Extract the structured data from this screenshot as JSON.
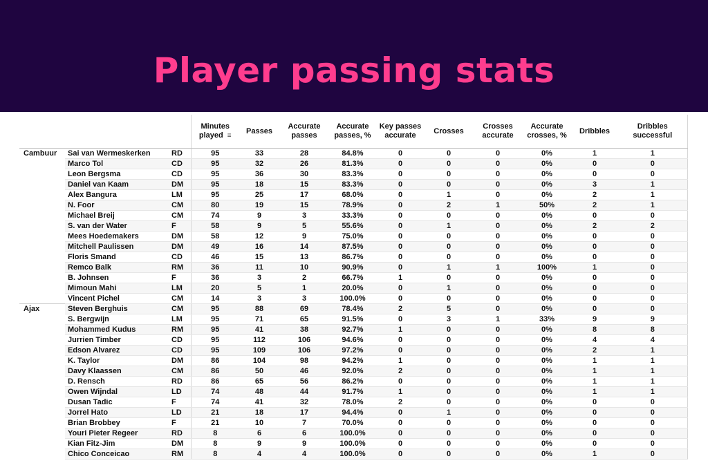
{
  "title": "Player passing stats",
  "columns": {
    "minutes": "Minutes played",
    "passes": "Passes",
    "accurate_passes": "Accurate passes",
    "accurate_passes_pct": "Accurate passes, %",
    "key_passes": "Key passes accurate",
    "crosses": "Crosses",
    "crosses_accurate": "Crosses accurate",
    "accurate_crosses_pct": "Accurate crosses, %",
    "dribbles": "Dribbles",
    "dribbles_successful": "Dribbles successful"
  },
  "rows": [
    {
      "team": "Cambuur",
      "player": "Sai van Wermeskerken",
      "pos": "RD",
      "minutes": "95",
      "passes": "33",
      "acc": "28",
      "acc_pct": "84.8%",
      "key": "0",
      "crosses": "0",
      "cross_acc": "0",
      "cross_pct": "0%",
      "dribbles": "1",
      "drib_succ": "1"
    },
    {
      "team": "",
      "player": "Marco Tol",
      "pos": "CD",
      "minutes": "95",
      "passes": "32",
      "acc": "26",
      "acc_pct": "81.3%",
      "key": "0",
      "crosses": "0",
      "cross_acc": "0",
      "cross_pct": "0%",
      "dribbles": "0",
      "drib_succ": "0"
    },
    {
      "team": "",
      "player": "Leon Bergsma",
      "pos": "CD",
      "minutes": "95",
      "passes": "36",
      "acc": "30",
      "acc_pct": "83.3%",
      "key": "0",
      "crosses": "0",
      "cross_acc": "0",
      "cross_pct": "0%",
      "dribbles": "0",
      "drib_succ": "0"
    },
    {
      "team": "",
      "player": "Daniel van Kaam",
      "pos": "DM",
      "minutes": "95",
      "passes": "18",
      "acc": "15",
      "acc_pct": "83.3%",
      "key": "0",
      "crosses": "0",
      "cross_acc": "0",
      "cross_pct": "0%",
      "dribbles": "3",
      "drib_succ": "1"
    },
    {
      "team": "",
      "player": "Alex Bangura",
      "pos": "LM",
      "minutes": "95",
      "passes": "25",
      "acc": "17",
      "acc_pct": "68.0%",
      "key": "0",
      "crosses": "1",
      "cross_acc": "0",
      "cross_pct": "0%",
      "dribbles": "2",
      "drib_succ": "1"
    },
    {
      "team": "",
      "player": "N. Foor",
      "pos": "CM",
      "minutes": "80",
      "passes": "19",
      "acc": "15",
      "acc_pct": "78.9%",
      "key": "0",
      "crosses": "2",
      "cross_acc": "1",
      "cross_pct": "50%",
      "dribbles": "2",
      "drib_succ": "1"
    },
    {
      "team": "",
      "player": "Michael Breij",
      "pos": "CM",
      "minutes": "74",
      "passes": "9",
      "acc": "3",
      "acc_pct": "33.3%",
      "key": "0",
      "crosses": "0",
      "cross_acc": "0",
      "cross_pct": "0%",
      "dribbles": "0",
      "drib_succ": "0"
    },
    {
      "team": "",
      "player": "S. van der Water",
      "pos": "F",
      "minutes": "58",
      "passes": "9",
      "acc": "5",
      "acc_pct": "55.6%",
      "key": "0",
      "crosses": "1",
      "cross_acc": "0",
      "cross_pct": "0%",
      "dribbles": "2",
      "drib_succ": "2"
    },
    {
      "team": "",
      "player": "Mees Hoedemakers",
      "pos": "DM",
      "minutes": "58",
      "passes": "12",
      "acc": "9",
      "acc_pct": "75.0%",
      "key": "0",
      "crosses": "0",
      "cross_acc": "0",
      "cross_pct": "0%",
      "dribbles": "0",
      "drib_succ": "0"
    },
    {
      "team": "",
      "player": "Mitchell Paulissen",
      "pos": "DM",
      "minutes": "49",
      "passes": "16",
      "acc": "14",
      "acc_pct": "87.5%",
      "key": "0",
      "crosses": "0",
      "cross_acc": "0",
      "cross_pct": "0%",
      "dribbles": "0",
      "drib_succ": "0"
    },
    {
      "team": "",
      "player": "Floris Smand",
      "pos": "CD",
      "minutes": "46",
      "passes": "15",
      "acc": "13",
      "acc_pct": "86.7%",
      "key": "0",
      "crosses": "0",
      "cross_acc": "0",
      "cross_pct": "0%",
      "dribbles": "0",
      "drib_succ": "0"
    },
    {
      "team": "",
      "player": "Remco Balk",
      "pos": "RM",
      "minutes": "36",
      "passes": "11",
      "acc": "10",
      "acc_pct": "90.9%",
      "key": "0",
      "crosses": "1",
      "cross_acc": "1",
      "cross_pct": "100%",
      "dribbles": "1",
      "drib_succ": "0"
    },
    {
      "team": "",
      "player": "B. Johnsen",
      "pos": "F",
      "minutes": "36",
      "passes": "3",
      "acc": "2",
      "acc_pct": "66.7%",
      "key": "1",
      "crosses": "0",
      "cross_acc": "0",
      "cross_pct": "0%",
      "dribbles": "0",
      "drib_succ": "0"
    },
    {
      "team": "",
      "player": "Mimoun Mahi",
      "pos": "LM",
      "minutes": "20",
      "passes": "5",
      "acc": "1",
      "acc_pct": "20.0%",
      "key": "0",
      "crosses": "1",
      "cross_acc": "0",
      "cross_pct": "0%",
      "dribbles": "0",
      "drib_succ": "0"
    },
    {
      "team": "",
      "player": "Vincent Pichel",
      "pos": "CM",
      "minutes": "14",
      "passes": "3",
      "acc": "3",
      "acc_pct": "100.0%",
      "key": "0",
      "crosses": "0",
      "cross_acc": "0",
      "cross_pct": "0%",
      "dribbles": "0",
      "drib_succ": "0"
    },
    {
      "team": "Ajax",
      "player": "Steven Berghuis",
      "pos": "CM",
      "minutes": "95",
      "passes": "88",
      "acc": "69",
      "acc_pct": "78.4%",
      "key": "2",
      "crosses": "5",
      "cross_acc": "0",
      "cross_pct": "0%",
      "dribbles": "0",
      "drib_succ": "0"
    },
    {
      "team": "",
      "player": "S. Bergwijn",
      "pos": "LM",
      "minutes": "95",
      "passes": "71",
      "acc": "65",
      "acc_pct": "91.5%",
      "key": "0",
      "crosses": "3",
      "cross_acc": "1",
      "cross_pct": "33%",
      "dribbles": "9",
      "drib_succ": "9"
    },
    {
      "team": "",
      "player": "Mohammed Kudus",
      "pos": "RM",
      "minutes": "95",
      "passes": "41",
      "acc": "38",
      "acc_pct": "92.7%",
      "key": "1",
      "crosses": "0",
      "cross_acc": "0",
      "cross_pct": "0%",
      "dribbles": "8",
      "drib_succ": "8"
    },
    {
      "team": "",
      "player": "Jurrien Timber",
      "pos": "CD",
      "minutes": "95",
      "passes": "112",
      "acc": "106",
      "acc_pct": "94.6%",
      "key": "0",
      "crosses": "0",
      "cross_acc": "0",
      "cross_pct": "0%",
      "dribbles": "4",
      "drib_succ": "4"
    },
    {
      "team": "",
      "player": "Edson Alvarez",
      "pos": "CD",
      "minutes": "95",
      "passes": "109",
      "acc": "106",
      "acc_pct": "97.2%",
      "key": "0",
      "crosses": "0",
      "cross_acc": "0",
      "cross_pct": "0%",
      "dribbles": "2",
      "drib_succ": "1"
    },
    {
      "team": "",
      "player": "K. Taylor",
      "pos": "DM",
      "minutes": "86",
      "passes": "104",
      "acc": "98",
      "acc_pct": "94.2%",
      "key": "1",
      "crosses": "0",
      "cross_acc": "0",
      "cross_pct": "0%",
      "dribbles": "1",
      "drib_succ": "1"
    },
    {
      "team": "",
      "player": "Davy Klaassen",
      "pos": "CM",
      "minutes": "86",
      "passes": "50",
      "acc": "46",
      "acc_pct": "92.0%",
      "key": "2",
      "crosses": "0",
      "cross_acc": "0",
      "cross_pct": "0%",
      "dribbles": "1",
      "drib_succ": "1"
    },
    {
      "team": "",
      "player": "D. Rensch",
      "pos": "RD",
      "minutes": "86",
      "passes": "65",
      "acc": "56",
      "acc_pct": "86.2%",
      "key": "0",
      "crosses": "0",
      "cross_acc": "0",
      "cross_pct": "0%",
      "dribbles": "1",
      "drib_succ": "1"
    },
    {
      "team": "",
      "player": "Owen Wijndal",
      "pos": "LD",
      "minutes": "74",
      "passes": "48",
      "acc": "44",
      "acc_pct": "91.7%",
      "key": "1",
      "crosses": "0",
      "cross_acc": "0",
      "cross_pct": "0%",
      "dribbles": "1",
      "drib_succ": "1"
    },
    {
      "team": "",
      "player": "Dusan Tadic",
      "pos": "F",
      "minutes": "74",
      "passes": "41",
      "acc": "32",
      "acc_pct": "78.0%",
      "key": "2",
      "crosses": "0",
      "cross_acc": "0",
      "cross_pct": "0%",
      "dribbles": "0",
      "drib_succ": "0"
    },
    {
      "team": "",
      "player": "Jorrel Hato",
      "pos": "LD",
      "minutes": "21",
      "passes": "18",
      "acc": "17",
      "acc_pct": "94.4%",
      "key": "0",
      "crosses": "1",
      "cross_acc": "0",
      "cross_pct": "0%",
      "dribbles": "0",
      "drib_succ": "0"
    },
    {
      "team": "",
      "player": "Brian Brobbey",
      "pos": "F",
      "minutes": "21",
      "passes": "10",
      "acc": "7",
      "acc_pct": "70.0%",
      "key": "0",
      "crosses": "0",
      "cross_acc": "0",
      "cross_pct": "0%",
      "dribbles": "0",
      "drib_succ": "0"
    },
    {
      "team": "",
      "player": "Youri Pieter Regeer",
      "pos": "RD",
      "minutes": "8",
      "passes": "6",
      "acc": "6",
      "acc_pct": "100.0%",
      "key": "0",
      "crosses": "0",
      "cross_acc": "0",
      "cross_pct": "0%",
      "dribbles": "0",
      "drib_succ": "0"
    },
    {
      "team": "",
      "player": "Kian Fitz-Jim",
      "pos": "DM",
      "minutes": "8",
      "passes": "9",
      "acc": "9",
      "acc_pct": "100.0%",
      "key": "0",
      "crosses": "0",
      "cross_acc": "0",
      "cross_pct": "0%",
      "dribbles": "0",
      "drib_succ": "0"
    },
    {
      "team": "",
      "player": "Chico Conceicao",
      "pos": "RM",
      "minutes": "8",
      "passes": "4",
      "acc": "4",
      "acc_pct": "100.0%",
      "key": "0",
      "crosses": "0",
      "cross_acc": "0",
      "cross_pct": "0%",
      "dribbles": "1",
      "drib_succ": "0"
    }
  ]
}
